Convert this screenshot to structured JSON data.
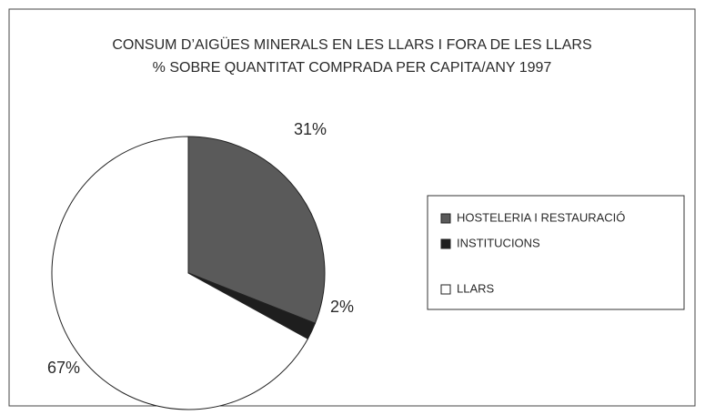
{
  "chart_data": {
    "type": "pie",
    "title": "CONSUM D’AIGÜES MINERALS EN LES LLARS I FORA DE LES LLARS",
    "subtitle": "% SOBRE QUANTITAT COMPRADA PER CAPITA/ANY 1997",
    "categories": [
      "HOSTELERIA I RESTAURACIÓ",
      "INSTITUCIONS",
      "LLARS"
    ],
    "values": [
      31,
      2,
      67
    ],
    "value_labels": [
      "31%",
      "2%",
      "67%"
    ],
    "colors": [
      "#5a5a5a",
      "#1e1e1e",
      "#ffffff"
    ]
  }
}
